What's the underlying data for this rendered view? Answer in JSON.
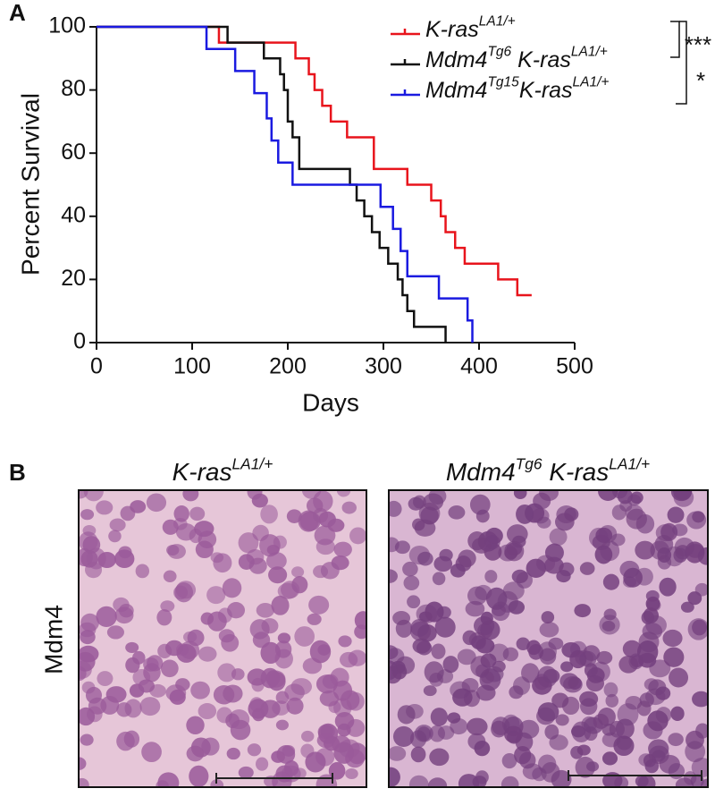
{
  "chart_data": {
    "type": "step",
    "panel_label": "A",
    "xlabel": "Days",
    "ylabel": "Percent Survival",
    "xlim": [
      0,
      500
    ],
    "xticks": [
      0,
      100,
      200,
      300,
      400,
      500
    ],
    "ylim": [
      0,
      100
    ],
    "yticks": [
      0,
      20,
      40,
      60,
      80,
      100
    ],
    "series": [
      {
        "name": [
          {
            "text": "K-ras"
          },
          {
            "sup": "LA1/+"
          }
        ],
        "color": "#e8141c",
        "x": [
          0,
          128,
          208,
          222,
          228,
          236,
          245,
          262,
          290,
          325,
          350,
          360,
          365,
          375,
          385,
          420,
          440,
          455
        ],
        "values": [
          100,
          95,
          90,
          85,
          80,
          75,
          70,
          65,
          55,
          50,
          45,
          40,
          35,
          30,
          25,
          20,
          15,
          15
        ]
      },
      {
        "name": [
          {
            "text": "Mdm4"
          },
          {
            "sup": "Tg6"
          },
          {
            "text": " K-ras"
          },
          {
            "sup": "LA1/+"
          }
        ],
        "color": "#111111",
        "x": [
          0,
          137,
          175,
          192,
          196,
          200,
          205,
          212,
          265,
          272,
          280,
          288,
          296,
          305,
          315,
          320,
          325,
          332,
          365
        ],
        "values": [
          100,
          95,
          90,
          85,
          80,
          70,
          65,
          55,
          50,
          45,
          40,
          35,
          30,
          25,
          20,
          15,
          10,
          5,
          0
        ]
      },
      {
        "name": [
          {
            "text": "Mdm4"
          },
          {
            "sup": "Tg15"
          },
          {
            "text": "K-ras"
          },
          {
            "sup": "LA1/+"
          }
        ],
        "color": "#1a1ae0",
        "x": [
          0,
          115,
          145,
          165,
          178,
          183,
          190,
          205,
          297,
          310,
          318,
          325,
          358,
          388,
          393
        ],
        "values": [
          100,
          93,
          86,
          79,
          71,
          64,
          57,
          50,
          43,
          36,
          29,
          21,
          14,
          7,
          0
        ]
      }
    ],
    "significance": [
      "***",
      "*"
    ]
  },
  "panel_b": {
    "panel_label": "B",
    "row_label": "Mdm4",
    "titles": [
      [
        {
          "text": "K-ras"
        },
        {
          "sup": "LA1/+"
        }
      ],
      [
        {
          "text": "Mdm4"
        },
        {
          "sup": "Tg6"
        },
        {
          "text": " K-ras"
        },
        {
          "sup": "LA1/+"
        }
      ]
    ]
  }
}
